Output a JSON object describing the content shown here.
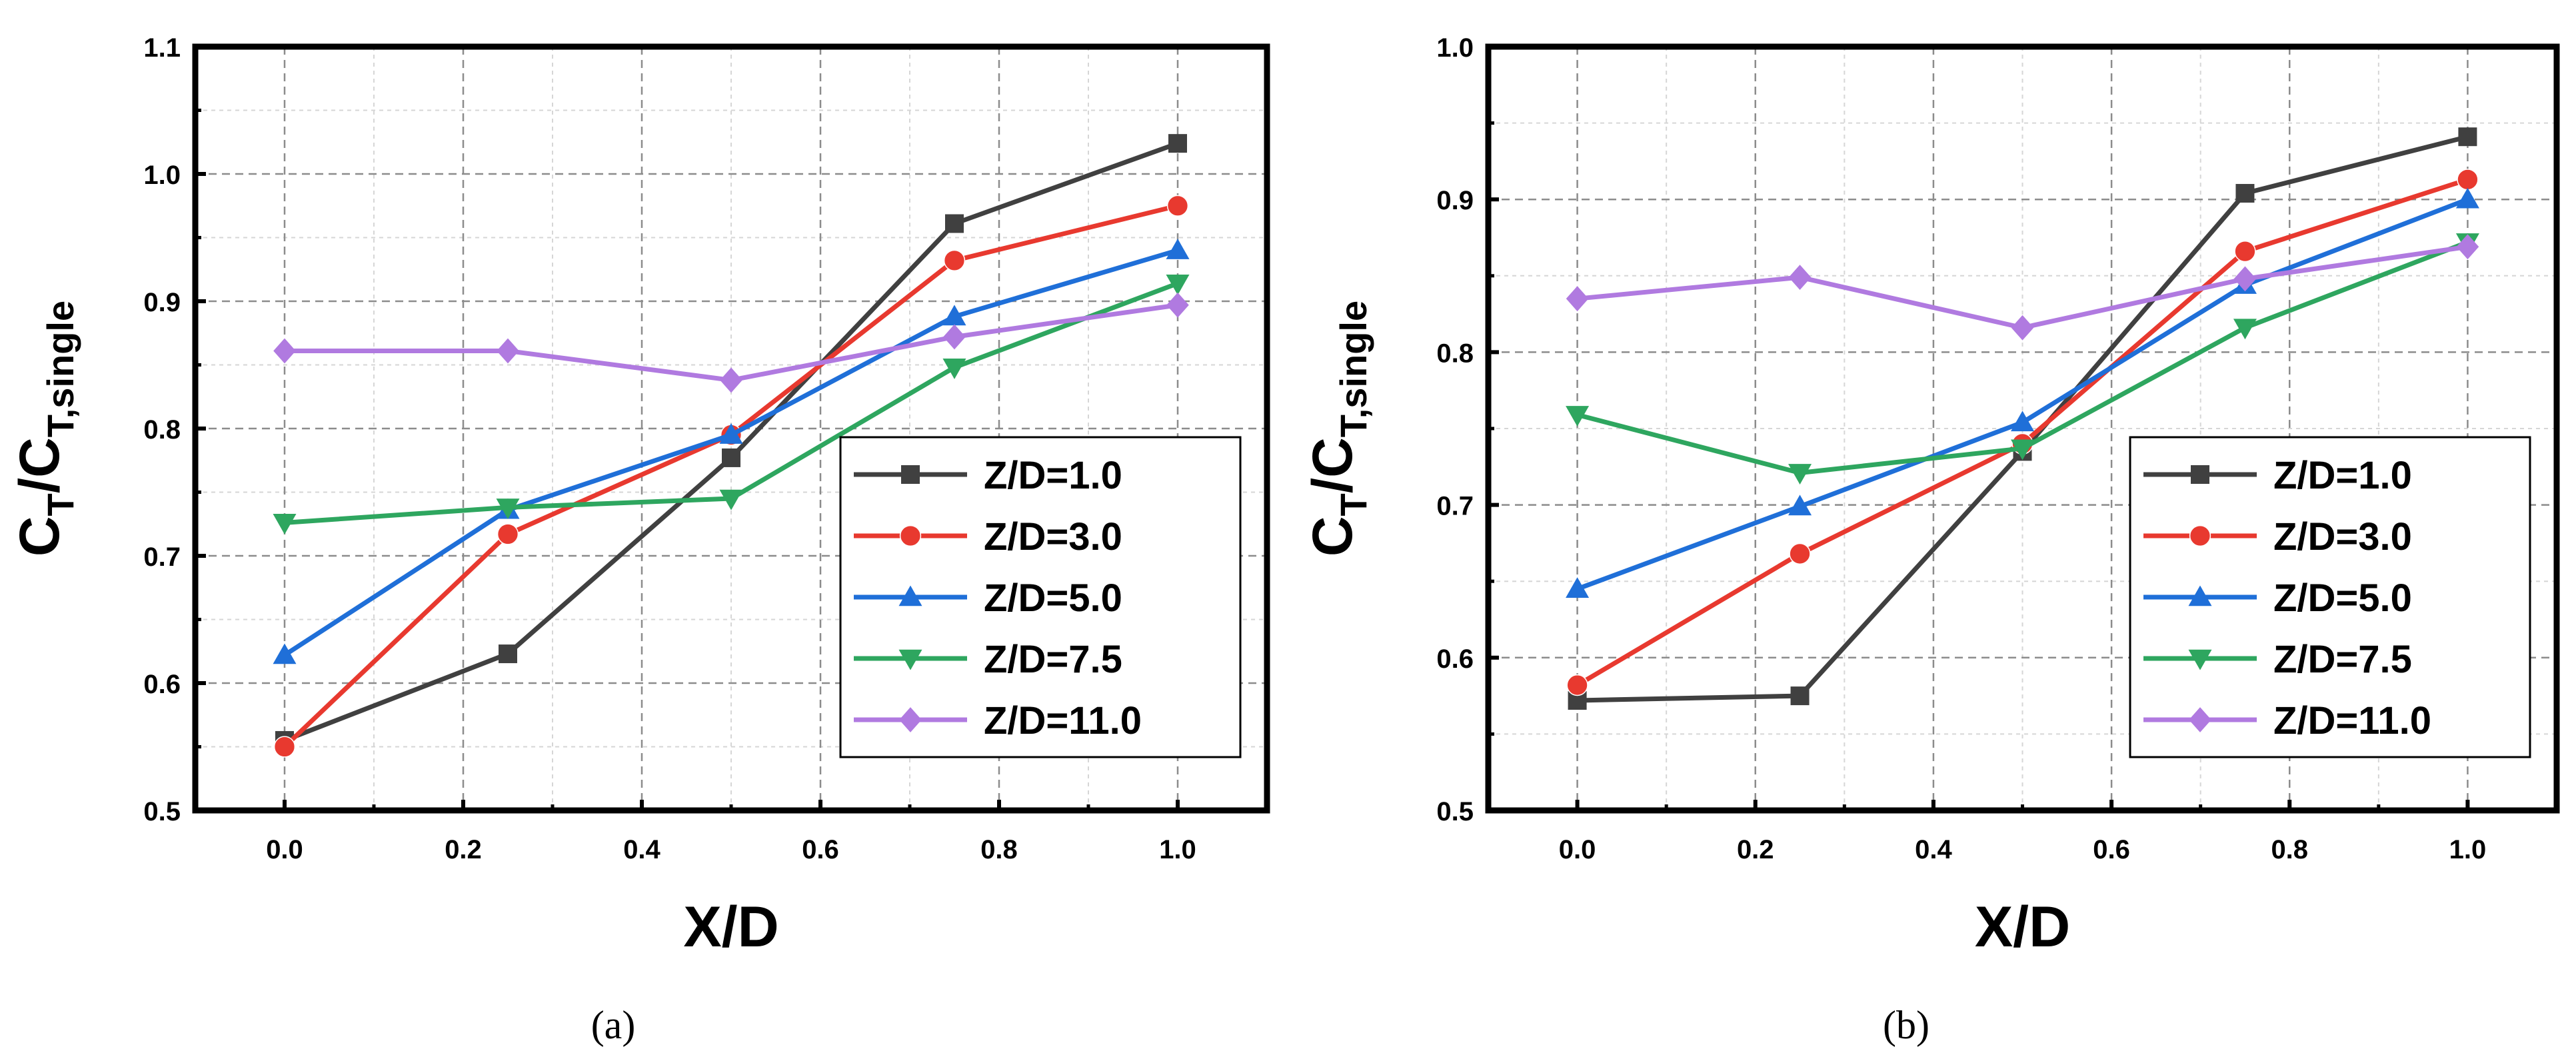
{
  "chart_data": [
    {
      "type": "line",
      "caption_letter": "a",
      "caption": "(a)",
      "xlabel": "X/D",
      "ylabel_main": "C",
      "ylabel_sub1": "T",
      "ylabel_slash": "/C",
      "ylabel_sub2": "T,single",
      "xlim": [
        -0.1,
        1.1
      ],
      "ylim": [
        0.5,
        1.1
      ],
      "x_ticks": [
        0.0,
        0.2,
        0.4,
        0.6,
        0.8,
        1.0
      ],
      "x_tick_labels": [
        "0.0",
        "0.2",
        "0.4",
        "0.6",
        "0.8",
        "1.0"
      ],
      "y_ticks": [
        0.5,
        0.6,
        0.7,
        0.8,
        0.9,
        1.0,
        1.1
      ],
      "y_tick_labels": [
        "0.5",
        "0.6",
        "0.7",
        "0.8",
        "0.9",
        "1.0",
        "1.1"
      ],
      "grid": true,
      "legend_position": "bottom-right",
      "x": [
        0.0,
        0.25,
        0.5,
        0.75,
        1.0
      ],
      "series": [
        {
          "name": "Z/D=1.0",
          "color": "#404040",
          "marker": "square",
          "values": [
            0.555,
            0.623,
            0.777,
            0.961,
            1.024
          ]
        },
        {
          "name": "Z/D=3.0",
          "color": "#e8392f",
          "marker": "circle",
          "values": [
            0.55,
            0.717,
            0.795,
            0.932,
            0.975
          ]
        },
        {
          "name": "Z/D=5.0",
          "color": "#1f6fd8",
          "marker": "triangle-up",
          "values": [
            0.622,
            0.736,
            0.795,
            0.888,
            0.94
          ]
        },
        {
          "name": "Z/D=7.5",
          "color": "#2ea65f",
          "marker": "triangle-down",
          "values": [
            0.726,
            0.738,
            0.745,
            0.848,
            0.914
          ]
        },
        {
          "name": "Z/D=11.0",
          "color": "#b07ae0",
          "marker": "diamond",
          "values": [
            0.861,
            0.861,
            0.838,
            0.872,
            0.897
          ]
        }
      ]
    },
    {
      "type": "line",
      "caption_letter": "b",
      "caption": "(b)",
      "xlabel": "X/D",
      "ylabel_main": "C",
      "ylabel_sub1": "T",
      "ylabel_slash": "/C",
      "ylabel_sub2": "T,single",
      "xlim": [
        -0.1,
        1.1
      ],
      "ylim": [
        0.5,
        1.0
      ],
      "x_ticks": [
        0.0,
        0.2,
        0.4,
        0.6,
        0.8,
        1.0
      ],
      "x_tick_labels": [
        "0.0",
        "0.2",
        "0.4",
        "0.6",
        "0.8",
        "1.0"
      ],
      "y_ticks": [
        0.5,
        0.6,
        0.7,
        0.8,
        0.9,
        1.0
      ],
      "y_tick_labels": [
        "0.5",
        "0.6",
        "0.7",
        "0.8",
        "0.9",
        "1.0"
      ],
      "grid": true,
      "legend_position": "bottom-right",
      "x": [
        0.0,
        0.25,
        0.5,
        0.75,
        1.0
      ],
      "series": [
        {
          "name": "Z/D=1.0",
          "color": "#404040",
          "marker": "square",
          "values": [
            0.572,
            0.575,
            0.735,
            0.904,
            0.941
          ]
        },
        {
          "name": "Z/D=3.0",
          "color": "#e8392f",
          "marker": "circle",
          "values": [
            0.582,
            0.668,
            0.74,
            0.866,
            0.913
          ]
        },
        {
          "name": "Z/D=5.0",
          "color": "#1f6fd8",
          "marker": "triangle-up",
          "values": [
            0.645,
            0.699,
            0.754,
            0.844,
            0.9
          ]
        },
        {
          "name": "Z/D=7.5",
          "color": "#2ea65f",
          "marker": "triangle-down",
          "values": [
            0.759,
            0.721,
            0.737,
            0.816,
            0.872
          ]
        },
        {
          "name": "Z/D=11.0",
          "color": "#b07ae0",
          "marker": "diamond",
          "values": [
            0.835,
            0.849,
            0.816,
            0.848,
            0.869
          ]
        }
      ]
    }
  ]
}
